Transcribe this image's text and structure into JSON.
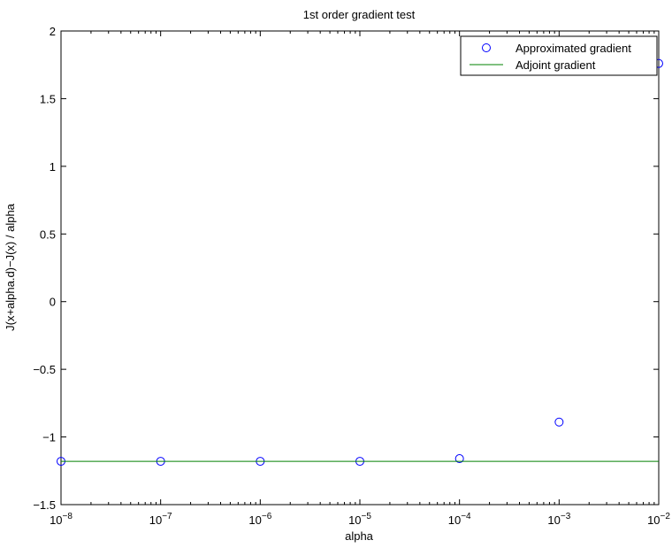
{
  "chart_data": {
    "type": "scatter",
    "title": "1st order gradient test",
    "xlabel": "alpha",
    "ylabel": "J(x+alpha.d)−J(x) / alpha",
    "xscale": "log",
    "xlim": [
      1e-08,
      0.01
    ],
    "ylim": [
      -1.5,
      2
    ],
    "grid": false,
    "legend_position": "top-right",
    "x_ticks": [
      {
        "value": 1e-08,
        "base": "10",
        "exp": "−8"
      },
      {
        "value": 1e-07,
        "base": "10",
        "exp": "−7"
      },
      {
        "value": 1e-06,
        "base": "10",
        "exp": "−6"
      },
      {
        "value": 1e-05,
        "base": "10",
        "exp": "−5"
      },
      {
        "value": 0.0001,
        "base": "10",
        "exp": "−4"
      },
      {
        "value": 0.001,
        "base": "10",
        "exp": "−3"
      },
      {
        "value": 0.01,
        "base": "10",
        "exp": "−2"
      }
    ],
    "y_ticks": [
      {
        "value": -1.5,
        "label": "−1.5"
      },
      {
        "value": -1,
        "label": "−1"
      },
      {
        "value": -0.5,
        "label": "−0.5"
      },
      {
        "value": 0,
        "label": "0"
      },
      {
        "value": 0.5,
        "label": "0.5"
      },
      {
        "value": 1,
        "label": "1"
      },
      {
        "value": 1.5,
        "label": "1.5"
      },
      {
        "value": 2,
        "label": "2"
      }
    ],
    "series": [
      {
        "name": "Approximated gradient",
        "kind": "markers",
        "marker": "circle",
        "color": "#0000ff",
        "x": [
          1e-08,
          1e-07,
          1e-06,
          1e-05,
          0.0001,
          0.001,
          0.01
        ],
        "y": [
          -1.18,
          -1.18,
          -1.18,
          -1.18,
          -1.16,
          -0.89,
          1.76
        ]
      },
      {
        "name": "Adjoint gradient",
        "kind": "line",
        "color": "#008000",
        "x": [
          1e-08,
          0.01
        ],
        "y": [
          -1.18,
          -1.18
        ]
      }
    ]
  }
}
